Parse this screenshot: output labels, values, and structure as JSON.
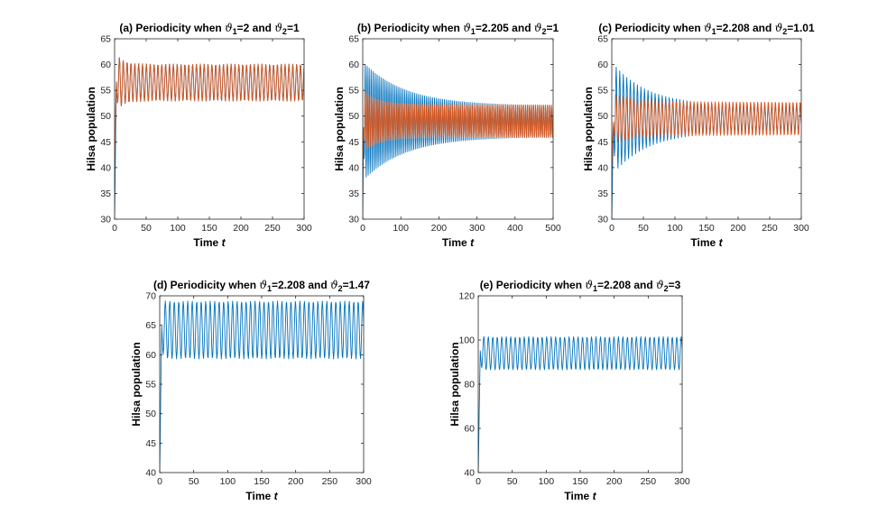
{
  "chart_data": [
    {
      "type": "line",
      "title": "(a) Periodicity when ϑ₁=2 and ϑ₂=1",
      "title_parts": {
        "prefix": "(a) Periodicity when ",
        "sym1": "ϑ",
        "sub1": "1",
        "mid": "=2 and ",
        "sym2": "ϑ",
        "sub2": "2",
        "suffix": "=1"
      },
      "xlabel": "Time",
      "xlabel_var": "t",
      "ylabel": "Hilsa population",
      "xlim": [
        0,
        300
      ],
      "ylim": [
        30,
        65
      ],
      "xticks": [
        0,
        50,
        100,
        150,
        200,
        250,
        300
      ],
      "yticks": [
        30,
        35,
        40,
        45,
        50,
        55,
        60,
        65
      ],
      "series": [
        {
          "name": "blue",
          "color": "#0072BD",
          "start": 30,
          "center": 56.5,
          "amp_final": 3.6,
          "amp_peak": 6,
          "decay": 12,
          "period": 6.1
        },
        {
          "name": "orange",
          "color": "#D95319",
          "start": 40,
          "center": 56.5,
          "amp_final": 3.6,
          "amp_peak": 6,
          "decay": 12,
          "period": 6.1
        }
      ]
    },
    {
      "type": "line",
      "title": "(b) Periodicity when ϑ₁=2.205 and ϑ₂=1",
      "title_parts": {
        "prefix": "(b) Periodicity when ",
        "sym1": "ϑ",
        "sub1": "1",
        "mid": "=2.205 and ",
        "sym2": "ϑ",
        "sub2": "2",
        "suffix": "=1"
      },
      "xlabel": "Time",
      "xlabel_var": "t",
      "ylabel": "Hilsa population",
      "xlim": [
        0,
        500
      ],
      "ylim": [
        30,
        65
      ],
      "xticks": [
        0,
        100,
        200,
        300,
        400,
        500
      ],
      "yticks": [
        30,
        35,
        40,
        45,
        50,
        55,
        60,
        65
      ],
      "series": [
        {
          "name": "blue",
          "color": "#0072BD",
          "start": 30,
          "center": 49,
          "amp_final": 3,
          "amp_peak": 11.5,
          "decay": 110,
          "period": 5.2
        },
        {
          "name": "orange",
          "color": "#D95319",
          "start": 40,
          "center": 49,
          "amp_final": 3.2,
          "amp_peak": 6,
          "decay": 40,
          "period": 5.2
        }
      ]
    },
    {
      "type": "line",
      "title": "(c) Periodicity when ϑ₁=2.208 and ϑ₂=1.01",
      "title_parts": {
        "prefix": "(c) Periodicity when ",
        "sym1": "ϑ",
        "sub1": "1",
        "mid": "=2.208 and ",
        "sym2": "ϑ",
        "sub2": "2",
        "suffix": "=1.01"
      },
      "xlabel": "Time",
      "xlabel_var": "t",
      "ylabel": "Hilsa population",
      "xlim": [
        0,
        300
      ],
      "ylim": [
        30,
        65
      ],
      "xticks": [
        0,
        50,
        100,
        150,
        200,
        250,
        300
      ],
      "yticks": [
        30,
        35,
        40,
        45,
        50,
        55,
        60,
        65
      ],
      "series": [
        {
          "name": "blue",
          "color": "#0072BD",
          "start": 30,
          "center": 49.5,
          "amp_final": 2.5,
          "amp_peak": 11,
          "decay": 55,
          "period": 5.6
        },
        {
          "name": "orange",
          "color": "#D95319",
          "start": 40,
          "center": 49.5,
          "amp_final": 3.3,
          "amp_peak": 5,
          "decay": 30,
          "period": 5.6
        }
      ]
    },
    {
      "type": "line",
      "title": "(d) Periodicity when ϑ₁=2.208 and ϑ₂=1.47",
      "title_parts": {
        "prefix": "(d) Periodicity when ",
        "sym1": "ϑ",
        "sub1": "1",
        "mid": "=2.208 and ",
        "sym2": "ϑ",
        "sub2": "2",
        "suffix": "=1.47"
      },
      "xlabel": "Time",
      "xlabel_var": "t",
      "ylabel": "Hilsa population",
      "xlim": [
        0,
        300
      ],
      "ylim": [
        40,
        70
      ],
      "xticks": [
        0,
        50,
        100,
        150,
        200,
        250,
        300
      ],
      "yticks": [
        40,
        45,
        50,
        55,
        60,
        65,
        70
      ],
      "series": [
        {
          "name": "blue",
          "color": "#0072BD",
          "start": 40,
          "center": 64.2,
          "amp_final": 4.9,
          "amp_peak": 5,
          "decay": 6,
          "period": 6.6
        }
      ]
    },
    {
      "type": "line",
      "title": "(e) Periodicity when ϑ₁=2.208 and ϑ₂=3",
      "title_parts": {
        "prefix": "(e) Periodicity when ",
        "sym1": "ϑ",
        "sub1": "1",
        "mid": "=2.208 and ",
        "sym2": "ϑ",
        "sub2": "2",
        "suffix": "=3"
      },
      "xlabel": "Time",
      "xlabel_var": "t",
      "ylabel": "Hilsa population",
      "xlim": [
        0,
        300
      ],
      "ylim": [
        40,
        120
      ],
      "xticks": [
        0,
        50,
        100,
        150,
        200,
        250,
        300
      ],
      "yticks": [
        40,
        60,
        80,
        100,
        120
      ],
      "series": [
        {
          "name": "blue",
          "color": "#0072BD",
          "start": 40,
          "center": 94,
          "amp_final": 7.5,
          "amp_peak": 8,
          "decay": 6,
          "period": 6.6
        }
      ]
    }
  ]
}
